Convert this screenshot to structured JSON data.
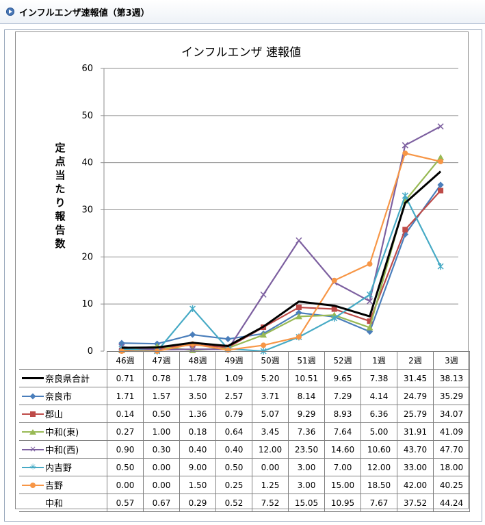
{
  "header": {
    "title": "インフルエンザ速報値（第3週）"
  },
  "chart_data": {
    "type": "line",
    "title": "インフルエンザ 速報値",
    "ylabel": "定点当たり報告数",
    "xlabel": "",
    "ylim": [
      0,
      60
    ],
    "yticks": [
      "0",
      "10",
      "20",
      "30",
      "40",
      "50",
      "60"
    ],
    "grid": true,
    "legend": "data table below chart",
    "categories": [
      "46週",
      "47週",
      "48週",
      "49週",
      "50週",
      "51週",
      "52週",
      "1週",
      "2週",
      "3週"
    ],
    "series": [
      {
        "name": "奈良県合計",
        "color": "#000000",
        "marker": "none",
        "values": [
          0.71,
          0.78,
          1.78,
          1.09,
          5.2,
          10.51,
          9.65,
          7.38,
          31.45,
          38.13
        ],
        "labels": [
          "0.71",
          "0.78",
          "1.78",
          "1.09",
          "5.20",
          "10.51",
          "9.65",
          "7.38",
          "31.45",
          "38.13"
        ]
      },
      {
        "name": "奈良市",
        "color": "#4a7ebb",
        "marker": "diamond",
        "values": [
          1.71,
          1.57,
          3.5,
          2.57,
          3.71,
          8.14,
          7.29,
          4.14,
          24.79,
          35.29
        ],
        "labels": [
          "1.71",
          "1.57",
          "3.50",
          "2.57",
          "3.71",
          "8.14",
          "7.29",
          "4.14",
          "24.79",
          "35.29"
        ]
      },
      {
        "name": "郡山",
        "color": "#be4b48",
        "marker": "square",
        "values": [
          0.14,
          0.5,
          1.36,
          0.79,
          5.07,
          9.29,
          8.93,
          6.36,
          25.79,
          34.07
        ],
        "labels": [
          "0.14",
          "0.50",
          "1.36",
          "0.79",
          "5.07",
          "9.29",
          "8.93",
          "6.36",
          "25.79",
          "34.07"
        ]
      },
      {
        "name": "中和(東)",
        "color": "#98b954",
        "marker": "triangle",
        "values": [
          0.27,
          1.0,
          0.18,
          0.64,
          3.45,
          7.36,
          7.64,
          5.0,
          31.91,
          41.09
        ],
        "labels": [
          "0.27",
          "1.00",
          "0.18",
          "0.64",
          "3.45",
          "7.36",
          "7.64",
          "5.00",
          "31.91",
          "41.09"
        ]
      },
      {
        "name": "中和(西)",
        "color": "#7d60a0",
        "marker": "x",
        "values": [
          0.9,
          0.3,
          0.4,
          0.4,
          12.0,
          23.5,
          14.6,
          10.6,
          43.7,
          47.7
        ],
        "labels": [
          "0.90",
          "0.30",
          "0.40",
          "0.40",
          "12.00",
          "23.50",
          "14.60",
          "10.60",
          "43.70",
          "47.70"
        ]
      },
      {
        "name": "内吉野",
        "color": "#46aac5",
        "marker": "star",
        "values": [
          0.5,
          0.0,
          9.0,
          0.5,
          0.0,
          3.0,
          7.0,
          12.0,
          33.0,
          18.0
        ],
        "labels": [
          "0.50",
          "0.00",
          "9.00",
          "0.50",
          "0.00",
          "3.00",
          "7.00",
          "12.00",
          "33.00",
          "18.00"
        ]
      },
      {
        "name": "吉野",
        "color": "#f79646",
        "marker": "circle",
        "values": [
          0.0,
          0.0,
          1.5,
          0.25,
          1.25,
          3.0,
          15.0,
          18.5,
          42.0,
          40.25
        ],
        "labels": [
          "0.00",
          "0.00",
          "1.50",
          "0.25",
          "1.25",
          "3.00",
          "15.00",
          "18.50",
          "42.00",
          "40.25"
        ]
      },
      {
        "name": "中和",
        "color": "#ffffff",
        "marker": "none",
        "plotted": false,
        "values": [
          0.57,
          0.67,
          0.29,
          0.52,
          7.52,
          15.05,
          10.95,
          7.67,
          37.52,
          44.24
        ],
        "labels": [
          "0.57",
          "0.67",
          "0.29",
          "0.52",
          "7.52",
          "15.05",
          "10.95",
          "7.67",
          "37.52",
          "44.24"
        ]
      }
    ]
  }
}
